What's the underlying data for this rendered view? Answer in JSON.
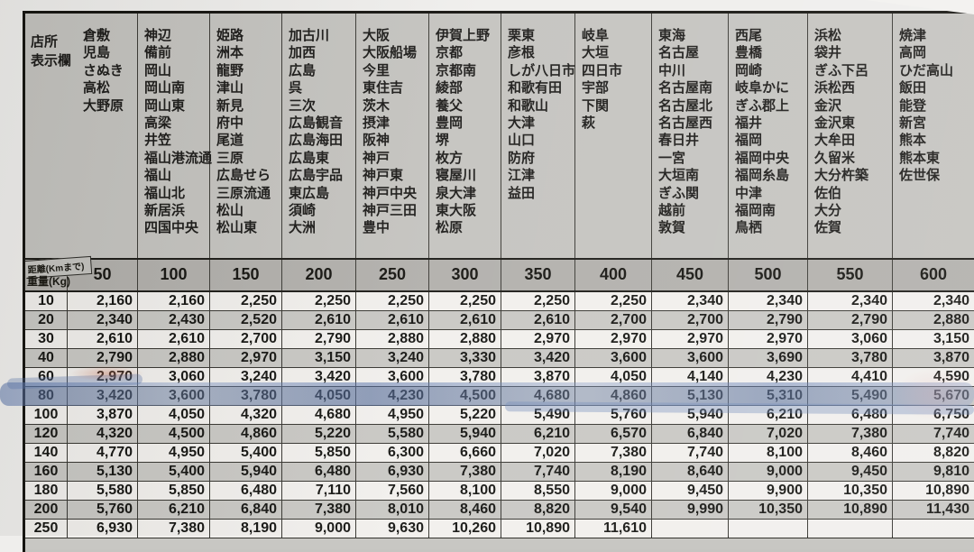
{
  "header": {
    "store_label_line1": "店所",
    "store_label_line2": "表示欄",
    "distance_label": "距離(Kmまで)",
    "weight_label": "重量(Kg)"
  },
  "zones": [
    {
      "distance": "50",
      "stations": [
        "倉敷",
        "児島",
        "さぬき",
        "高松",
        "大野原"
      ]
    },
    {
      "distance": "100",
      "stations": [
        "神辺",
        "備前",
        "岡山",
        "岡山南",
        "岡山東",
        "高梁",
        "井笠",
        "福山港流通",
        "福山",
        "福山北",
        "新居浜",
        "四国中央"
      ]
    },
    {
      "distance": "150",
      "stations": [
        "姫路",
        "洲本",
        "龍野",
        "津山",
        "新見",
        "府中",
        "尾道",
        "三原",
        "広島せら",
        "三原流通",
        "松山",
        "松山東"
      ]
    },
    {
      "distance": "200",
      "stations": [
        "加古川",
        "加西",
        "広島",
        "呉",
        "三次",
        "広島観音",
        "広島海田",
        "広島東",
        "広島宇品",
        "東広島",
        "須崎",
        "大洲"
      ]
    },
    {
      "distance": "250",
      "stations": [
        "大阪",
        "大阪船場",
        "今里",
        "東住吉",
        "茨木",
        "摂津",
        "阪神",
        "神戸",
        "神戸東",
        "神戸中央",
        "神戸三田",
        "豊中"
      ]
    },
    {
      "distance": "300",
      "stations": [
        "伊賀上野",
        "京都",
        "京都南",
        "綾部",
        "養父",
        "豊岡",
        "堺",
        "枚方",
        "寝屋川",
        "泉大津",
        "東大阪",
        "松原"
      ]
    },
    {
      "distance": "350",
      "stations": [
        "栗東",
        "彦根",
        "しが八日市",
        "和歌有田",
        "和歌山",
        "大津",
        "山口",
        "防府",
        "江津",
        "益田"
      ]
    },
    {
      "distance": "400",
      "stations": [
        "岐阜",
        "大垣",
        "四日市",
        "宇部",
        "下関",
        "萩"
      ]
    },
    {
      "distance": "450",
      "stations": [
        "東海",
        "名古屋",
        "中川",
        "名古屋南",
        "名古屋北",
        "名古屋西",
        "春日井",
        "一宮",
        "大垣南",
        "ぎふ関",
        "越前",
        "敦賀"
      ]
    },
    {
      "distance": "500",
      "stations": [
        "西尾",
        "豊橋",
        "岡崎",
        "岐阜かに",
        "ぎふ郡上",
        "福井",
        "福岡",
        "福岡中央",
        "福岡糸島",
        "中津",
        "福岡南",
        "鳥栖"
      ]
    },
    {
      "distance": "550",
      "stations": [
        "浜松",
        "袋井",
        "ぎふ下呂",
        "浜松西",
        "金沢",
        "金沢東",
        "大牟田",
        "久留米",
        "大分杵築",
        "佐伯",
        "大分",
        "佐賀"
      ]
    },
    {
      "distance": "600",
      "stations": [
        "焼津",
        "高岡",
        "ひだ高山",
        "飯田",
        "能登",
        "新宮",
        "熊本",
        "熊本東",
        "佐世保"
      ]
    }
  ],
  "rates": {
    "weights": [
      "10",
      "20",
      "30",
      "40",
      "60",
      "80",
      "100",
      "120",
      "140",
      "160",
      "180",
      "200",
      "250"
    ],
    "rows": [
      [
        "2,160",
        "2,160",
        "2,250",
        "2,250",
        "2,250",
        "2,250",
        "2,250",
        "2,250",
        "2,340",
        "2,340",
        "2,340",
        "2,340"
      ],
      [
        "2,340",
        "2,430",
        "2,520",
        "2,610",
        "2,610",
        "2,610",
        "2,610",
        "2,700",
        "2,700",
        "2,790",
        "2,790",
        "2,880"
      ],
      [
        "2,610",
        "2,610",
        "2,700",
        "2,790",
        "2,880",
        "2,880",
        "2,970",
        "2,970",
        "2,970",
        "2,970",
        "3,060",
        "3,150"
      ],
      [
        "2,790",
        "2,880",
        "2,970",
        "3,150",
        "3,240",
        "3,330",
        "3,420",
        "3,600",
        "3,600",
        "3,690",
        "3,780",
        "3,870"
      ],
      [
        "2,970",
        "3,060",
        "3,240",
        "3,420",
        "3,600",
        "3,780",
        "3,870",
        "4,050",
        "4,140",
        "4,230",
        "4,410",
        "4,590"
      ],
      [
        "3,420",
        "3,600",
        "3,780",
        "4,050",
        "4,230",
        "4,500",
        "4,680",
        "4,860",
        "5,130",
        "5,310",
        "5,490",
        "5,670"
      ],
      [
        "3,870",
        "4,050",
        "4,320",
        "4,680",
        "4,950",
        "5,220",
        "5,490",
        "5,760",
        "5,940",
        "6,210",
        "6,480",
        "6,750"
      ],
      [
        "4,320",
        "4,500",
        "4,860",
        "5,220",
        "5,580",
        "5,940",
        "6,210",
        "6,570",
        "6,840",
        "7,020",
        "7,380",
        "7,740"
      ],
      [
        "4,770",
        "4,950",
        "5,400",
        "5,850",
        "6,300",
        "6,660",
        "7,020",
        "7,380",
        "7,740",
        "8,100",
        "8,460",
        "8,820"
      ],
      [
        "5,130",
        "5,400",
        "5,940",
        "6,480",
        "6,930",
        "7,380",
        "7,740",
        "8,190",
        "8,640",
        "9,000",
        "9,450",
        "9,810"
      ],
      [
        "5,580",
        "5,850",
        "6,480",
        "7,110",
        "7,560",
        "8,100",
        "8,550",
        "9,000",
        "9,450",
        "9,900",
        "10,350",
        "10,890"
      ],
      [
        "5,760",
        "6,210",
        "6,840",
        "7,380",
        "8,010",
        "8,460",
        "8,820",
        "9,540",
        "9,990",
        "10,350",
        "10,890",
        "11,430"
      ],
      [
        "6,930",
        "7,380",
        "8,190",
        "9,000",
        "9,630",
        "10,260",
        "10,890",
        "11,610",
        "",
        "",
        "",
        ""
      ]
    ]
  },
  "annotations": {
    "highlighted_weight": "80",
    "highlighter_color": "#6d8cc4"
  }
}
